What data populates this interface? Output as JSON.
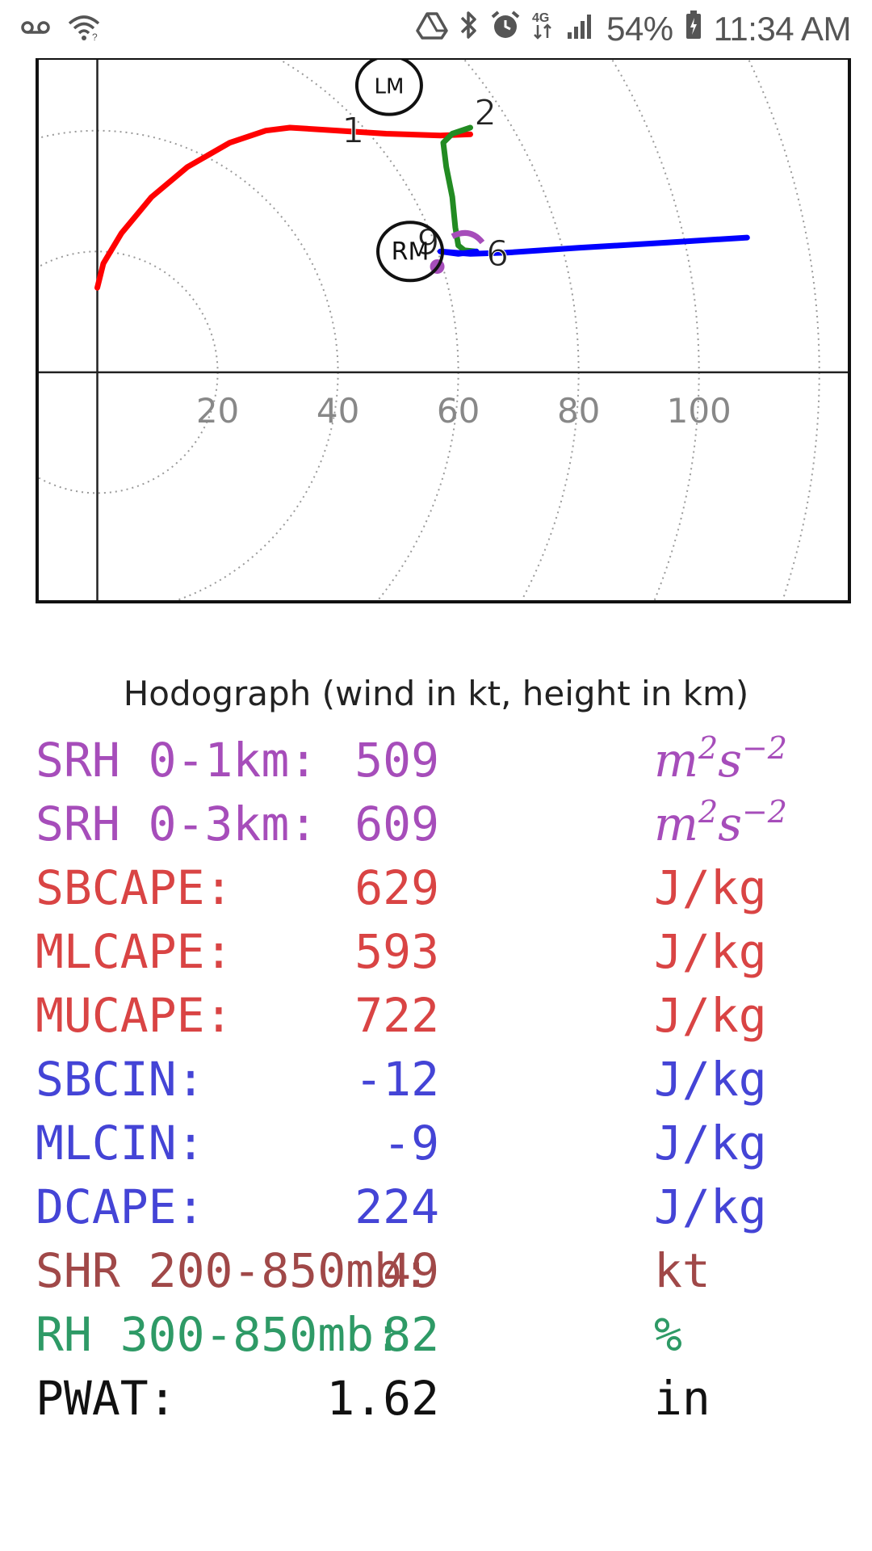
{
  "status_bar": {
    "battery": "54%",
    "time": "11:34 AM",
    "network": "4G",
    "icons": [
      "voicemail-icon",
      "wifi-icon",
      "drive-sync-icon",
      "bluetooth-icon",
      "alarm-icon",
      "network-4g-icon",
      "signal-icon",
      "battery-icon"
    ]
  },
  "chart_data": {
    "type": "line",
    "title": "Hodograph (wind in kt, height in km)",
    "x_tick_labels": [
      "20",
      "40",
      "60",
      "80",
      "100"
    ],
    "xlim": [
      -10,
      125
    ],
    "ylim": [
      -38,
      52
    ],
    "rings": [
      20,
      40,
      60,
      80,
      100,
      120
    ],
    "grid": true,
    "series": [
      {
        "color": "#ff0000",
        "points": [
          [
            0,
            14
          ],
          [
            1,
            18
          ],
          [
            4,
            23
          ],
          [
            9,
            29
          ],
          [
            15,
            34
          ],
          [
            22,
            38
          ],
          [
            28,
            40
          ],
          [
            32,
            40.5
          ],
          [
            40,
            40
          ],
          [
            48,
            39.5
          ],
          [
            57,
            39.2
          ],
          [
            62,
            39.4
          ]
        ]
      },
      {
        "color": "#228b22",
        "points": [
          [
            62,
            40.5
          ],
          [
            59,
            39.5
          ],
          [
            57.5,
            38
          ],
          [
            58,
            34
          ],
          [
            59,
            29
          ],
          [
            59.5,
            24
          ],
          [
            60,
            21
          ],
          [
            61,
            20.2
          ],
          [
            63,
            20
          ]
        ]
      },
      {
        "color": "#0000ff",
        "points": [
          [
            63,
            20
          ],
          [
            60,
            19.6
          ],
          [
            57,
            20
          ],
          [
            62,
            19.6
          ],
          [
            68,
            19.8
          ],
          [
            80,
            20.6
          ],
          [
            95,
            21.5
          ],
          [
            108,
            22.3
          ]
        ]
      }
    ],
    "point_labels": [
      "1",
      "2",
      "6",
      "9"
    ],
    "storm_markers": [
      "LM",
      "RM"
    ]
  },
  "params": [
    {
      "label": "SRH 0-1km:",
      "value": "509",
      "unit_base": "m",
      "unit_exp1": "2",
      "unit_base2": "s",
      "unit_exp2": "−2",
      "color": "#a64dba",
      "math": true
    },
    {
      "label": "SRH 0-3km:",
      "value": "609",
      "unit_base": "m",
      "unit_exp1": "2",
      "unit_base2": "s",
      "unit_exp2": "−2",
      "color": "#a64dba",
      "math": true
    },
    {
      "label": "SBCAPE:",
      "value": "629",
      "unit": "J/kg",
      "color": "#d94444"
    },
    {
      "label": "MLCAPE:",
      "value": "593",
      "unit": "J/kg",
      "color": "#d94444"
    },
    {
      "label": "MUCAPE:",
      "value": "722",
      "unit": "J/kg",
      "color": "#d94444"
    },
    {
      "label": "SBCIN:",
      "value": "-12",
      "unit": "J/kg",
      "color": "#4444d6"
    },
    {
      "label": "MLCIN:",
      "value": "-9",
      "unit": "J/kg",
      "color": "#4444d6"
    },
    {
      "label": "DCAPE:",
      "value": "224",
      "unit": "J/kg",
      "color": "#4444d6"
    },
    {
      "label": "SHR 200-850mb:",
      "value": "49",
      "unit": "kt",
      "color": "#a04848"
    },
    {
      "label": "RH 300-850mb:",
      "value": "82",
      "unit": "%",
      "color": "#2e9a66"
    },
    {
      "label": "PWAT:",
      "value": "1.62",
      "unit": "in",
      "color": "#111111"
    }
  ]
}
